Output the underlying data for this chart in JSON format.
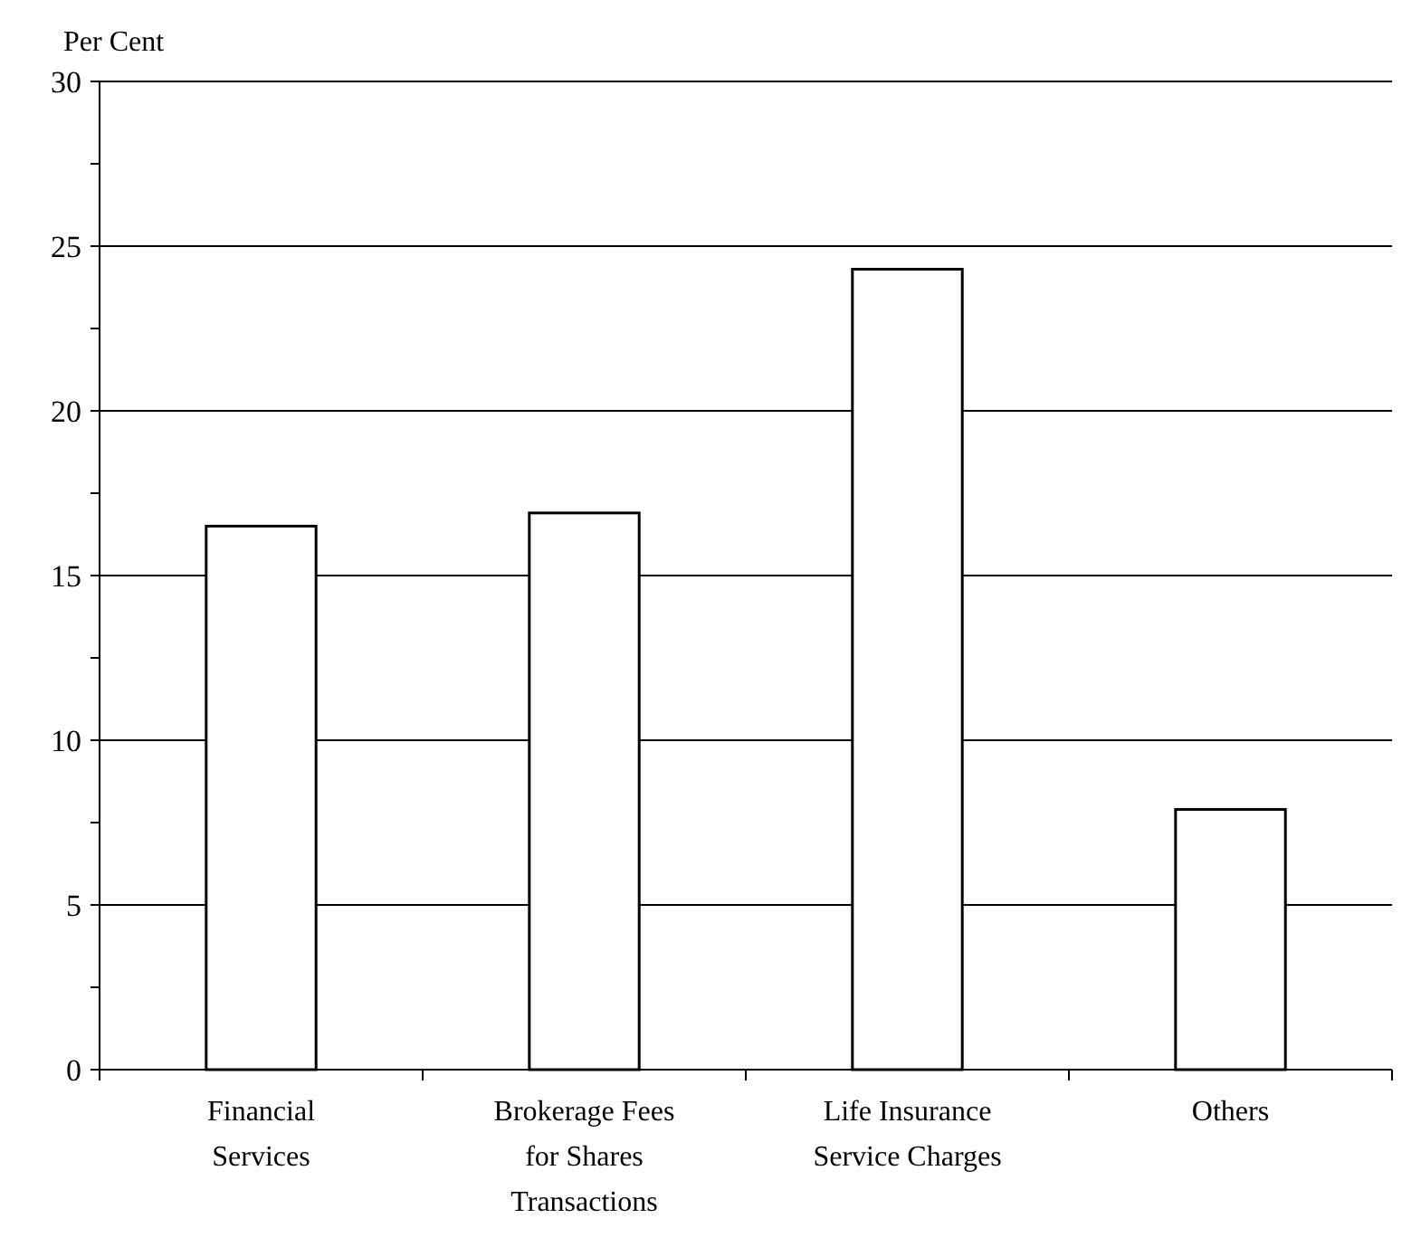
{
  "chart_data": {
    "type": "bar",
    "ylabel": "Per Cent",
    "categories": [
      "Financial Services",
      "Brokerage Fees for Shares Transactions",
      "Life Insurance Service Charges",
      "Others"
    ],
    "values": [
      16.5,
      16.9,
      24.3,
      7.9
    ],
    "color": "#ffffff",
    "ylim": [
      0,
      30
    ],
    "yticks": [
      0,
      {
        "value": 2.5,
        "label": null
      },
      5,
      {
        "value": 7.5,
        "label": null
      },
      10,
      {
        "value": 12.5,
        "label": null
      },
      15,
      {
        "value": 17.5,
        "label": null
      },
      20,
      {
        "value": 22.5,
        "label": null
      },
      25,
      {
        "value": 27.5,
        "label": null
      },
      30
    ],
    "grid": "y"
  }
}
